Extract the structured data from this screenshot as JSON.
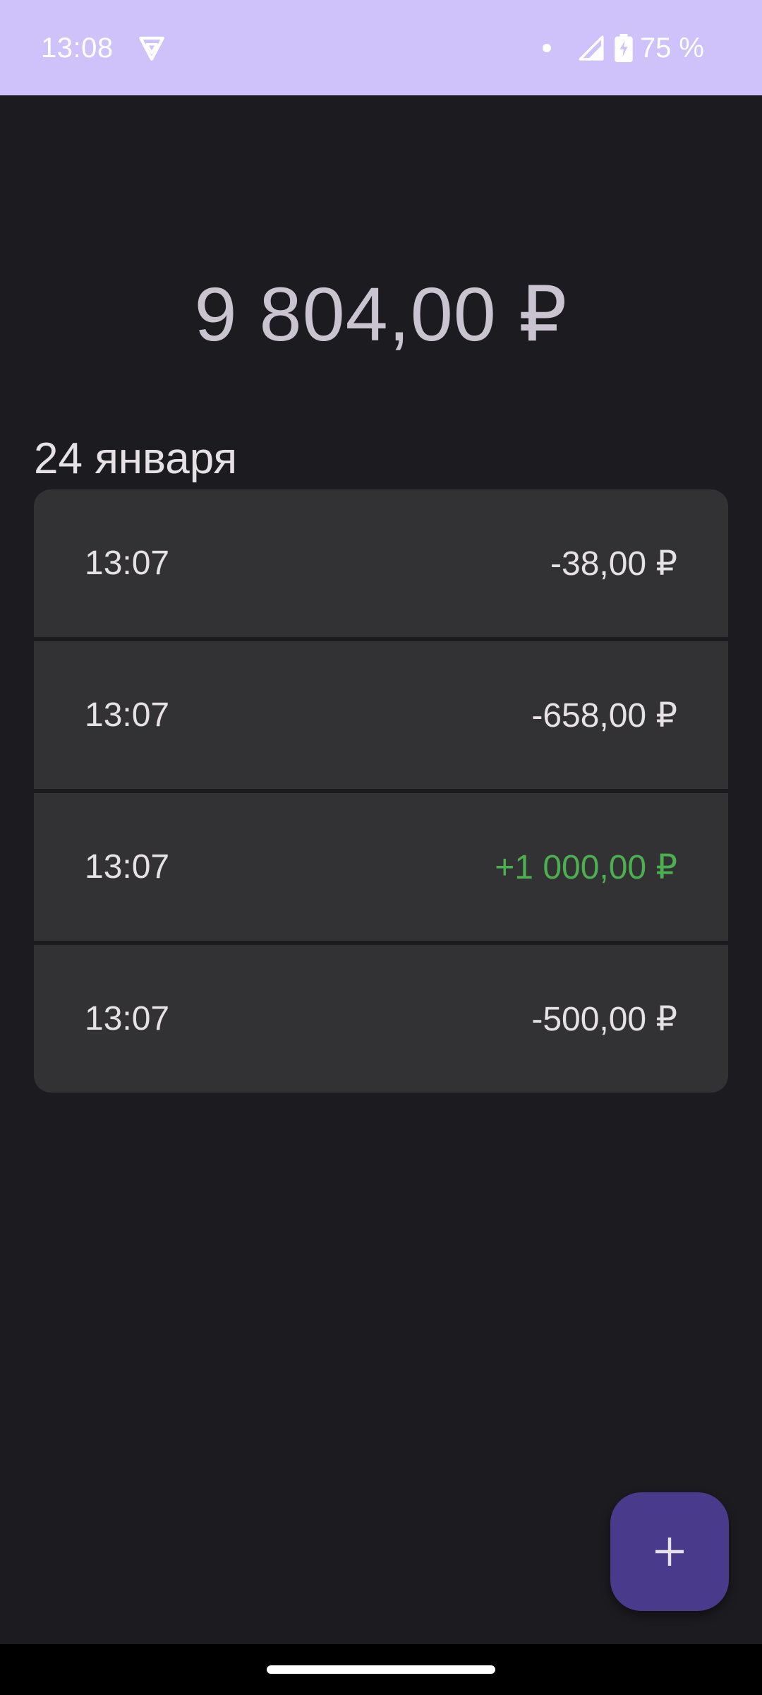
{
  "status_bar": {
    "time": "13:08",
    "battery": "75 %",
    "background_color": "#cfc2fb"
  },
  "balance": {
    "amount": "9 804,00 ₽"
  },
  "groups": [
    {
      "date": "24 января",
      "transactions": [
        {
          "time": "13:07",
          "amount": "-38,00 ₽",
          "type": "expense"
        },
        {
          "time": "13:07",
          "amount": "-658,00 ₽",
          "type": "expense"
        },
        {
          "time": "13:07",
          "amount": "+1 000,00 ₽",
          "type": "income"
        },
        {
          "time": "13:07",
          "amount": "-500,00 ₽",
          "type": "expense"
        }
      ]
    }
  ],
  "fab": {
    "icon": "plus-icon",
    "color": "#4a3a8c"
  },
  "colors": {
    "income": "#4caf50",
    "text": "#e6e1e5",
    "card": "#323234",
    "background": "#1c1b1f"
  }
}
